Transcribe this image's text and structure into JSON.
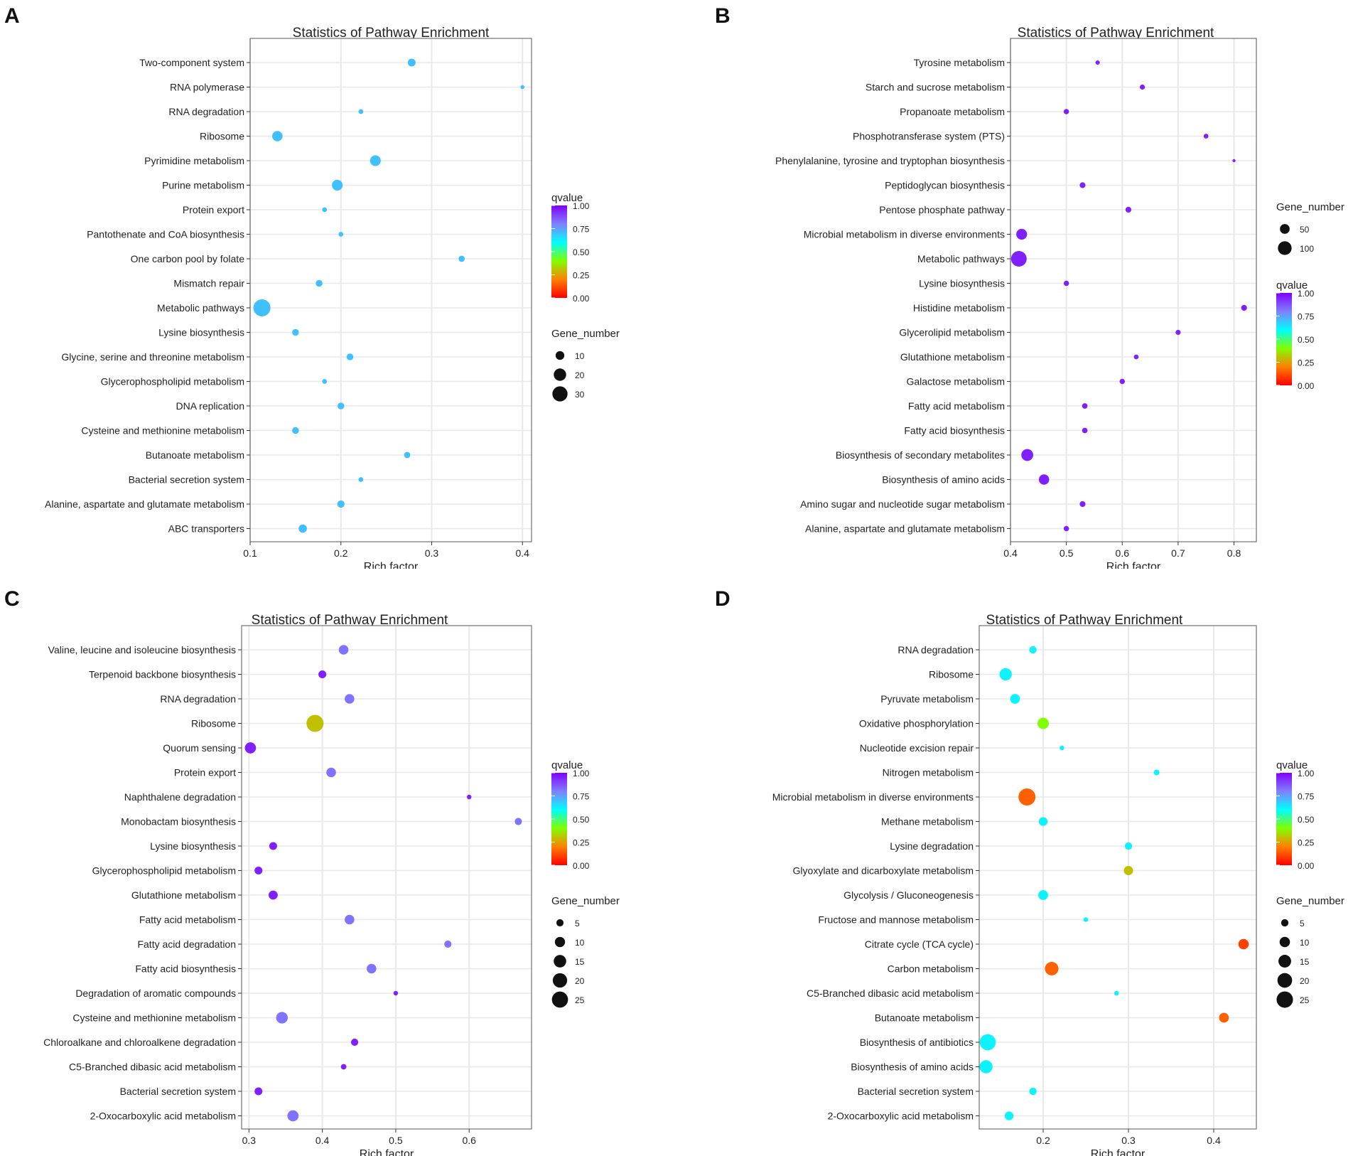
{
  "figure": {
    "panel_letters": [
      "A",
      "B",
      "C",
      "D"
    ],
    "colors": {
      "panel_bg": "#ffffff",
      "grid": "#e8e8e8",
      "frame": "#555555",
      "qvalue_scale": [
        "#ff0000",
        "#ff8000",
        "#80ff00",
        "#00ffff",
        "#8080ff",
        "#8000ff"
      ]
    }
  },
  "chart_data": [
    {
      "type": "scatter",
      "panel": "A",
      "title": "Statistics of Pathway Enrichment",
      "xlabel": "Rich factor",
      "xlim": [
        0.1,
        0.41
      ],
      "xticks": [
        0.1,
        0.2,
        0.3,
        0.4
      ],
      "xtick_labels": [
        "0.1",
        "0.2",
        "0.3",
        "0.4"
      ],
      "categories": [
        "Two-component system",
        "RNA polymerase",
        "RNA degradation",
        "Ribosome",
        "Pyrimidine metabolism",
        "Purine metabolism",
        "Protein export",
        "Pantothenate and CoA biosynthesis",
        "One carbon pool by folate",
        "Mismatch repair",
        "Metabolic pathways",
        "Lysine biosynthesis",
        "Glycine, serine and threonine metabolism",
        "Glycerophospholipid metabolism",
        "DNA replication",
        "Cysteine and methionine metabolism",
        "Butanoate metabolism",
        "Bacterial secretion system",
        "Alanine, aspartate and glutamate metabolism",
        "ABC transporters"
      ],
      "rich_factor": [
        0.278,
        0.4,
        0.222,
        0.13,
        0.238,
        0.196,
        0.182,
        0.2,
        0.333,
        0.176,
        0.113,
        0.15,
        0.21,
        0.182,
        0.2,
        0.15,
        0.273,
        0.222,
        0.2,
        0.158
      ],
      "gene_number": [
        8,
        2,
        3,
        14,
        15,
        15,
        3,
        3,
        5,
        6,
        38,
        6,
        6,
        3,
        6,
        6,
        5,
        3,
        7,
        9
      ],
      "qvalue": [
        0.7,
        0.7,
        0.7,
        0.7,
        0.7,
        0.7,
        0.7,
        0.7,
        0.7,
        0.7,
        0.7,
        0.7,
        0.7,
        0.7,
        0.7,
        0.7,
        0.7,
        0.7,
        0.7,
        0.7
      ],
      "legend_order": [
        "qvalue",
        "gene"
      ],
      "qvalue_legend": {
        "title": "qvalue",
        "labels": [
          "1.00",
          "0.75",
          "0.50",
          "0.25",
          "0.00"
        ]
      },
      "gene_legend": {
        "title": "Gene_number",
        "values": [
          10,
          20,
          30
        ],
        "labels": [
          "10",
          "20",
          "30"
        ]
      }
    },
    {
      "type": "scatter",
      "panel": "B",
      "title": "Statistics of Pathway Enrichment",
      "xlabel": "Rich factor",
      "xlim": [
        0.4,
        0.84
      ],
      "xticks": [
        0.4,
        0.5,
        0.6,
        0.7,
        0.8
      ],
      "xtick_labels": [
        "0.4",
        "0.5",
        "0.6",
        "0.7",
        "0.8"
      ],
      "categories": [
        "Tyrosine metabolism",
        "Starch and sucrose metabolism",
        "Propanoate metabolism",
        "Phosphotransferase system (PTS)",
        "Phenylalanine, tyrosine and tryptophan biosynthesis",
        "Peptidoglycan biosynthesis",
        "Pentose phosphate pathway",
        "Microbial metabolism in diverse environments",
        "Metabolic pathways",
        "Lysine biosynthesis",
        "Histidine metabolism",
        "Glycerolipid metabolism",
        "Glutathione metabolism",
        "Galactose metabolism",
        "Fatty acid metabolism",
        "Fatty acid biosynthesis",
        "Biosynthesis of secondary metabolites",
        "Biosynthesis of amino acids",
        "Amino sugar and nucleotide sugar metabolism",
        "Alanine, aspartate and glutamate metabolism"
      ],
      "rich_factor": [
        0.556,
        0.636,
        0.5,
        0.75,
        0.8,
        0.529,
        0.611,
        0.42,
        0.415,
        0.5,
        0.818,
        0.7,
        0.625,
        0.6,
        0.533,
        0.533,
        0.43,
        0.46,
        0.529,
        0.5
      ],
      "gene_number": [
        10,
        14,
        15,
        12,
        4,
        18,
        18,
        62,
        130,
        15,
        18,
        14,
        12,
        15,
        16,
        16,
        75,
        57,
        18,
        15
      ],
      "qvalue": [
        0.95,
        0.95,
        0.95,
        0.95,
        0.95,
        0.95,
        0.95,
        0.95,
        0.95,
        0.95,
        0.95,
        0.95,
        0.95,
        0.95,
        0.95,
        0.95,
        0.95,
        0.95,
        0.95,
        0.95
      ],
      "legend_order": [
        "gene",
        "qvalue"
      ],
      "qvalue_legend": {
        "title": "qvalue",
        "labels": [
          "1.00",
          "0.75",
          "0.50",
          "0.25",
          "0.00"
        ]
      },
      "gene_legend": {
        "title": "Gene_number",
        "values": [
          50,
          100
        ],
        "labels": [
          "50",
          "100"
        ]
      }
    },
    {
      "type": "scatter",
      "panel": "C",
      "title": "Statistics of Pathway Enrichment",
      "xlabel": "Rich factor",
      "xlim": [
        0.29,
        0.685
      ],
      "xticks": [
        0.3,
        0.4,
        0.5,
        0.6
      ],
      "xtick_labels": [
        "0.3",
        "0.4",
        "0.5",
        "0.6"
      ],
      "categories": [
        "Valine, leucine and isoleucine biosynthesis",
        "Terpenoid backbone biosynthesis",
        "RNA degradation",
        "Ribosome",
        "Quorum sensing",
        "Protein export",
        "Naphthalene degradation",
        "Monobactam biosynthesis",
        "Lysine biosynthesis",
        "Glycerophospholipid metabolism",
        "Glutathione metabolism",
        "Fatty acid metabolism",
        "Fatty acid degradation",
        "Fatty acid biosynthesis",
        "Degradation of aromatic compounds",
        "Cysteine and methionine metabolism",
        "Chloroalkane and chloroalkene degradation",
        "C5-Branched dibasic acid metabolism",
        "Bacterial secretion system",
        "2-Oxocarboxylic acid metabolism"
      ],
      "rich_factor": [
        0.429,
        0.4,
        0.437,
        0.39,
        0.302,
        0.412,
        0.6,
        0.667,
        0.333,
        0.313,
        0.333,
        0.437,
        0.571,
        0.467,
        0.5,
        0.345,
        0.444,
        0.429,
        0.313,
        0.36
      ],
      "gene_number": [
        9,
        6,
        9,
        28,
        12,
        9,
        2,
        5,
        6,
        6,
        8,
        9,
        5,
        9,
        2,
        13,
        5,
        3,
        6,
        12
      ],
      "qvalue": [
        0.82,
        0.95,
        0.82,
        0.3,
        0.95,
        0.82,
        0.95,
        0.82,
        0.95,
        0.95,
        0.95,
        0.82,
        0.82,
        0.82,
        0.95,
        0.82,
        0.95,
        0.95,
        0.95,
        0.82
      ],
      "legend_order": [
        "qvalue",
        "gene"
      ],
      "qvalue_legend": {
        "title": "qvalue",
        "labels": [
          "1.00",
          "0.75",
          "0.50",
          "0.25",
          "0.00"
        ]
      },
      "gene_legend": {
        "title": "Gene_number",
        "values": [
          5,
          10,
          15,
          20,
          25
        ],
        "labels": [
          "5",
          "10",
          "15",
          "20",
          "25"
        ]
      }
    },
    {
      "type": "scatter",
      "panel": "D",
      "title": "Statistics of Pathway Enrichment",
      "xlabel": "Rich factor",
      "xlim": [
        0.125,
        0.45
      ],
      "xticks": [
        0.2,
        0.3,
        0.4
      ],
      "xtick_labels": [
        "0.2",
        "0.3",
        "0.4"
      ],
      "categories": [
        "RNA degradation",
        "Ribosome",
        "Pyruvate metabolism",
        "Oxidative phosphorylation",
        "Nucleotide excision repair",
        "Nitrogen metabolism",
        "Microbial metabolism in diverse environments",
        "Methane metabolism",
        "Lysine degradation",
        "Glyoxylate and dicarboxylate metabolism",
        "Glycolysis / Gluconeogenesis",
        "Fructose and mannose metabolism",
        "Citrate cycle (TCA cycle)",
        "Carbon metabolism",
        "C5-Branched dibasic acid metabolism",
        "Butanoate metabolism",
        "Biosynthesis of antibiotics",
        "Biosynthesis of amino acids",
        "Bacterial secretion system",
        "2-Oxocarboxylic acid metabolism"
      ],
      "rich_factor": [
        0.188,
        0.156,
        0.167,
        0.2,
        0.222,
        0.333,
        0.181,
        0.2,
        0.3,
        0.3,
        0.2,
        0.25,
        0.435,
        0.21,
        0.286,
        0.412,
        0.135,
        0.133,
        0.188,
        0.16
      ],
      "gene_number": [
        5,
        14,
        9,
        12,
        2,
        3,
        27,
        7,
        5,
        8,
        9,
        2,
        10,
        17,
        2,
        9,
        24,
        16,
        5,
        7
      ],
      "qvalue": [
        0.62,
        0.62,
        0.62,
        0.4,
        0.62,
        0.62,
        0.15,
        0.62,
        0.62,
        0.3,
        0.62,
        0.62,
        0.1,
        0.15,
        0.62,
        0.15,
        0.62,
        0.62,
        0.62,
        0.62
      ],
      "legend_order": [
        "qvalue",
        "gene"
      ],
      "qvalue_legend": {
        "title": "qvalue",
        "labels": [
          "1.00",
          "0.75",
          "0.50",
          "0.25",
          "0.00"
        ]
      },
      "gene_legend": {
        "title": "Gene_number",
        "values": [
          5,
          10,
          15,
          20,
          25
        ],
        "labels": [
          "5",
          "10",
          "15",
          "20",
          "25"
        ]
      }
    }
  ]
}
